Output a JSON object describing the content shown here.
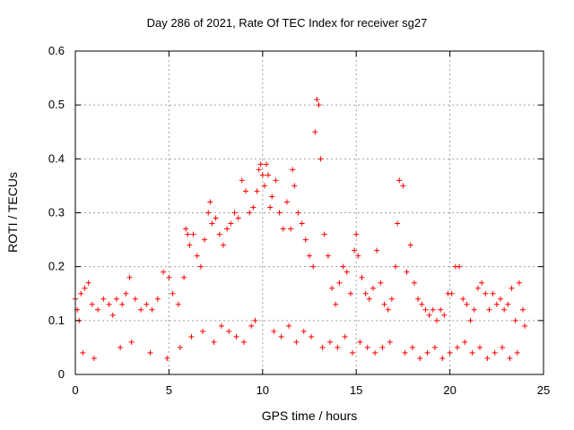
{
  "chart_data": {
    "type": "scatter",
    "title": "Day 286 of 2021, Rate Of TEC Index for receiver sg27",
    "xlabel": "GPS time / hours",
    "ylabel": "ROTI / TECUs",
    "xlim": [
      0,
      25
    ],
    "ylim": [
      0,
      0.6
    ],
    "xticks": [
      "0",
      "5",
      "10",
      "15",
      "20",
      "25"
    ],
    "yticks": [
      "0",
      "0.1",
      "0.2",
      "0.3",
      "0.4",
      "0.5",
      "0.6"
    ],
    "grid": true,
    "marker": "+",
    "color": "#ff0000",
    "series": [
      {
        "x": [
          0.0,
          0.1,
          0.2,
          0.3,
          0.5,
          0.7,
          0.9,
          1.2,
          1.5,
          1.8,
          2.0,
          2.2,
          2.5,
          2.7,
          2.9,
          3.2,
          3.5,
          3.8,
          4.1,
          4.4,
          4.7,
          5.0,
          5.2,
          5.5,
          5.8,
          5.9,
          6.0,
          6.1,
          6.3,
          6.5,
          6.7,
          6.9,
          7.1,
          7.2,
          7.3,
          7.5,
          7.7,
          7.9,
          8.1,
          8.3,
          8.5,
          8.7,
          8.9,
          9.1,
          9.3,
          9.5,
          9.7,
          9.8,
          9.9,
          10.0,
          10.1,
          10.2,
          10.3,
          10.4,
          10.5,
          10.7,
          10.9,
          11.1,
          11.3,
          11.5,
          11.6,
          11.7,
          11.9,
          12.1,
          12.3,
          12.5,
          12.7,
          12.8,
          12.9,
          13.0,
          13.1,
          13.3,
          13.5,
          13.7,
          13.9,
          14.1,
          14.3,
          14.5,
          14.7,
          14.9,
          15.0,
          15.1,
          15.3,
          15.5,
          15.7,
          15.9,
          16.1,
          16.3,
          16.5,
          16.7,
          16.9,
          17.1,
          17.2,
          17.3,
          17.5,
          17.7,
          17.9,
          18.1,
          18.3,
          18.5,
          18.7,
          18.9,
          19.1,
          19.3,
          19.5,
          19.7,
          19.9,
          20.1,
          20.3,
          20.5,
          20.7,
          20.9,
          21.1,
          21.3,
          21.5,
          21.7,
          21.9,
          22.1,
          22.3,
          22.5,
          22.7,
          22.9,
          23.1,
          23.3,
          23.5,
          23.7,
          23.9,
          24.0,
          0.4,
          1.0,
          2.4,
          3.0,
          4.0,
          4.9,
          5.6,
          6.2,
          6.8,
          7.4,
          7.8,
          8.2,
          8.6,
          9.0,
          9.4,
          9.6,
          10.6,
          11.0,
          11.4,
          11.8,
          12.2,
          12.6,
          13.2,
          13.6,
          14.0,
          14.4,
          14.8,
          15.2,
          15.6,
          16.0,
          16.4,
          16.8,
          17.6,
          18.0,
          18.4,
          18.8,
          19.2,
          19.6,
          20.0,
          20.4,
          20.8,
          21.2,
          21.6,
          22.0,
          22.4,
          22.8,
          23.2,
          23.6
        ],
        "y": [
          0.14,
          0.12,
          0.1,
          0.15,
          0.16,
          0.17,
          0.13,
          0.12,
          0.14,
          0.13,
          0.11,
          0.14,
          0.13,
          0.15,
          0.18,
          0.14,
          0.12,
          0.13,
          0.12,
          0.14,
          0.19,
          0.18,
          0.15,
          0.13,
          0.18,
          0.27,
          0.26,
          0.24,
          0.26,
          0.22,
          0.2,
          0.25,
          0.3,
          0.32,
          0.28,
          0.29,
          0.26,
          0.24,
          0.27,
          0.28,
          0.3,
          0.29,
          0.36,
          0.34,
          0.3,
          0.31,
          0.34,
          0.38,
          0.39,
          0.37,
          0.35,
          0.39,
          0.37,
          0.31,
          0.33,
          0.36,
          0.3,
          0.27,
          0.32,
          0.27,
          0.38,
          0.35,
          0.3,
          0.28,
          0.25,
          0.22,
          0.2,
          0.45,
          0.51,
          0.5,
          0.4,
          0.26,
          0.22,
          0.16,
          0.13,
          0.17,
          0.2,
          0.19,
          0.15,
          0.23,
          0.26,
          0.22,
          0.18,
          0.15,
          0.14,
          0.16,
          0.23,
          0.17,
          0.13,
          0.12,
          0.14,
          0.2,
          0.28,
          0.36,
          0.35,
          0.19,
          0.24,
          0.17,
          0.14,
          0.13,
          0.12,
          0.11,
          0.12,
          0.1,
          0.12,
          0.11,
          0.15,
          0.15,
          0.2,
          0.2,
          0.14,
          0.13,
          0.1,
          0.12,
          0.16,
          0.17,
          0.15,
          0.12,
          0.15,
          0.13,
          0.14,
          0.12,
          0.13,
          0.16,
          0.1,
          0.17,
          0.12,
          0.09,
          0.04,
          0.03,
          0.05,
          0.06,
          0.04,
          0.03,
          0.05,
          0.07,
          0.08,
          0.06,
          0.09,
          0.08,
          0.07,
          0.06,
          0.09,
          0.1,
          0.08,
          0.07,
          0.09,
          0.06,
          0.08,
          0.07,
          0.05,
          0.06,
          0.05,
          0.07,
          0.04,
          0.06,
          0.05,
          0.04,
          0.05,
          0.06,
          0.04,
          0.05,
          0.03,
          0.04,
          0.05,
          0.03,
          0.04,
          0.05,
          0.06,
          0.04,
          0.05,
          0.03,
          0.04,
          0.05,
          0.03,
          0.04
        ]
      }
    ]
  }
}
